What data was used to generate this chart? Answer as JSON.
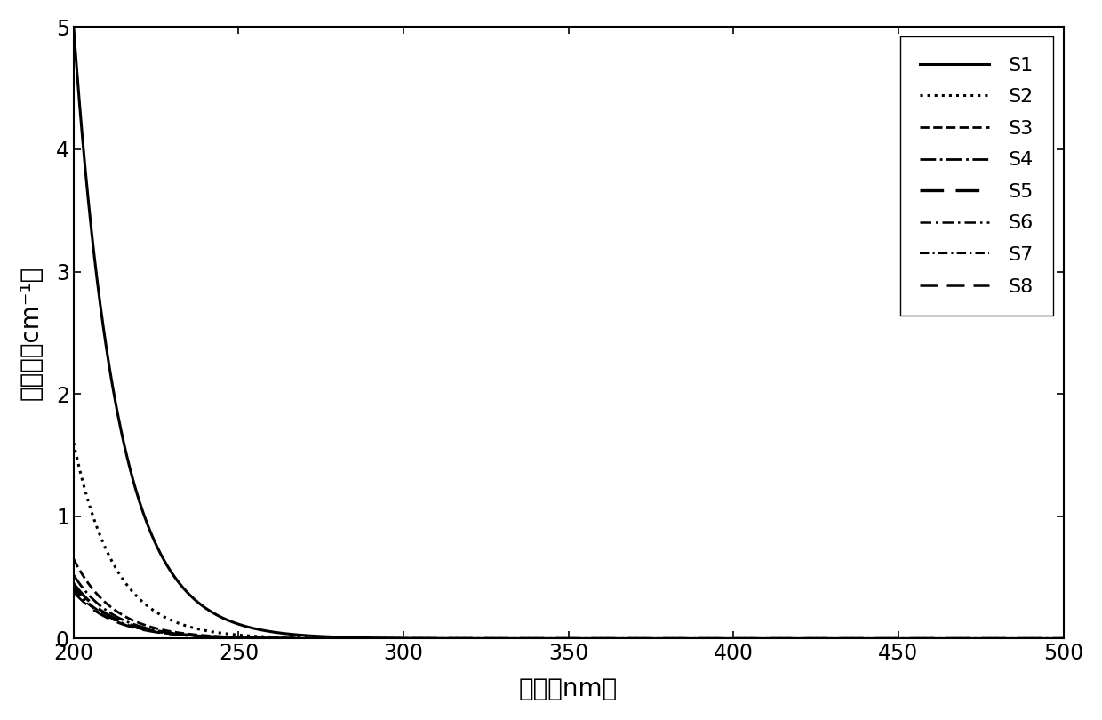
{
  "title": "",
  "xlabel": "波长（nm）",
  "ylabel": "吸光度（cm⁻¹）",
  "xlim": [
    200,
    500
  ],
  "ylim": [
    0,
    5
  ],
  "xticks": [
    200,
    250,
    300,
    350,
    400,
    450,
    500
  ],
  "yticks": [
    0,
    1,
    2,
    3,
    4,
    5
  ],
  "background_color": "#ffffff",
  "legend_fontsize": 16,
  "axis_fontsize": 20,
  "tick_fontsize": 17,
  "series": [
    {
      "label": "S1",
      "linestyle": "solid",
      "linewidth": 2.2,
      "color": "#000000",
      "a": 5.0,
      "b": 0.075,
      "x0": 200
    },
    {
      "label": "S2",
      "linestyle": "dotted",
      "linewidth": 2.2,
      "color": "#000000",
      "a": 1.6,
      "b": 0.08,
      "x0": 200
    },
    {
      "label": "S3",
      "linestyle": "dashed",
      "linewidth": 2.0,
      "color": "#000000",
      "a": 0.65,
      "b": 0.082,
      "x0": 200
    },
    {
      "label": "S4",
      "linestyle": "dashdot",
      "linewidth": 2.0,
      "color": "#000000",
      "a": 0.52,
      "b": 0.082,
      "x0": 200
    },
    {
      "label": "S5",
      "ls_custom": [
        8,
        4
      ],
      "linewidth": 2.4,
      "color": "#000000",
      "a": 0.45,
      "b": 0.081,
      "x0": 200
    },
    {
      "label": "S6",
      "ls_custom": [
        5,
        2,
        1,
        2
      ],
      "linewidth": 1.8,
      "color": "#000000",
      "a": 0.42,
      "b": 0.081,
      "x0": 200
    },
    {
      "label": "S7",
      "ls_custom": [
        5,
        2,
        1,
        2
      ],
      "linewidth": 1.5,
      "color": "#000000",
      "a": 0.4,
      "b": 0.08,
      "x0": 200
    },
    {
      "label": "S8",
      "ls_custom": [
        8,
        4
      ],
      "linewidth": 1.8,
      "color": "#000000",
      "a": 0.38,
      "b": 0.08,
      "x0": 200
    }
  ]
}
